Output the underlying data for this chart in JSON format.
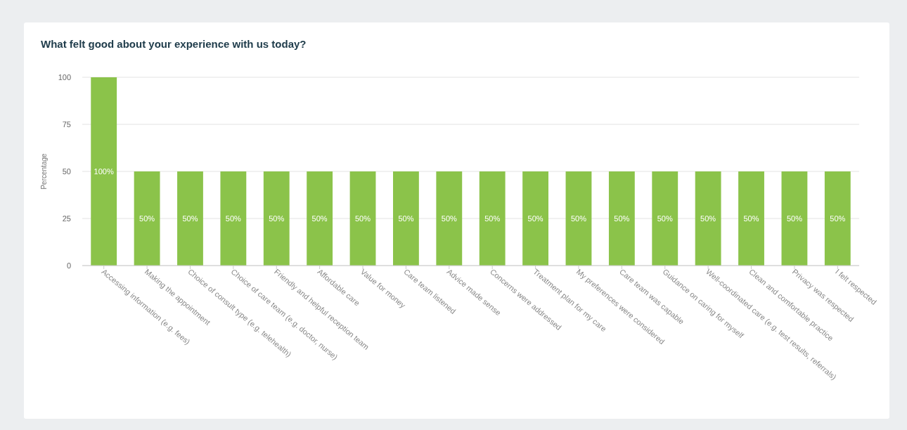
{
  "chart_data": {
    "type": "bar",
    "title": "What felt good about your experience with us today?",
    "ylabel": "Percentage",
    "categories": [
      "Accessing information (e.g. fees)",
      "Making the appointment",
      "Choice of consult type (e.g. telehealth)",
      "Choice of care team (e.g. doctor, nurse)",
      "Friendly and helpful reception team",
      "Affordable care",
      "Value for money",
      "Care team listened",
      "Advice made sense",
      "Concerns were addressed",
      "Treatment plan for my care",
      "My preferences were considered",
      "Care team was capable",
      "Guidance on caring for myself",
      "Well-coordinated care (e.g. test results, referrals)",
      "Clean and comfortable practice",
      "Privacy was respected",
      "I felt respected"
    ],
    "values": [
      100,
      50,
      50,
      50,
      50,
      50,
      50,
      50,
      50,
      50,
      50,
      50,
      50,
      50,
      50,
      50,
      50,
      50
    ],
    "value_labels": [
      "100%",
      "50%",
      "50%",
      "50%",
      "50%",
      "50%",
      "50%",
      "50%",
      "50%",
      "50%",
      "50%",
      "50%",
      "50%",
      "50%",
      "50%",
      "50%",
      "50%",
      "50%"
    ],
    "color": "#8bc34a",
    "ylim": [
      0,
      100
    ],
    "yticks": [
      0,
      25,
      50,
      75,
      100
    ],
    "grid": "y"
  }
}
